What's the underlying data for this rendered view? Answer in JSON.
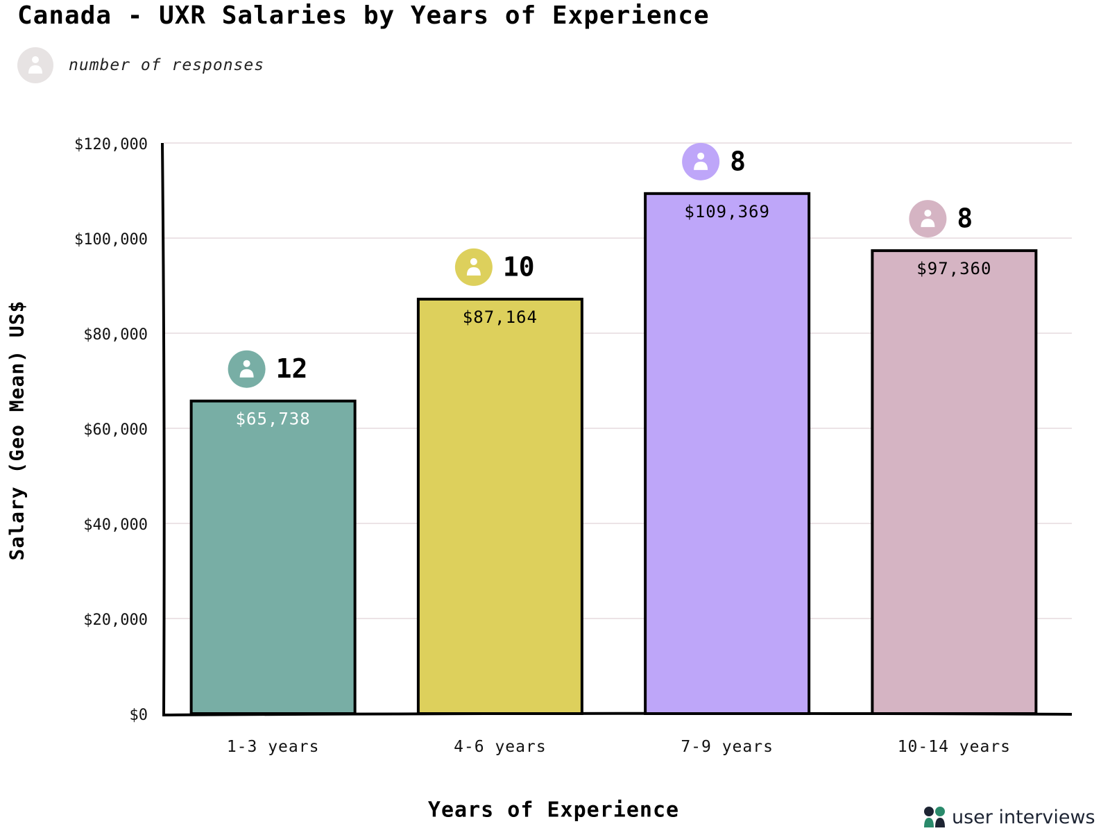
{
  "chart_data": {
    "type": "bar",
    "title": "Canada - UXR Salaries by Years of Experience",
    "legend_label": "number of responses",
    "legend_icon": "person-icon",
    "legend_icon_color": "#e7e3e3",
    "xlabel": "Years of Experience",
    "ylabel": "Salary (Geo Mean) US$",
    "ylim": [
      0,
      120000
    ],
    "y_ticks": [
      {
        "value": 0,
        "label": "$0"
      },
      {
        "value": 20000,
        "label": "$20,000"
      },
      {
        "value": 40000,
        "label": "$40,000"
      },
      {
        "value": 60000,
        "label": "$60,000"
      },
      {
        "value": 80000,
        "label": "$80,000"
      },
      {
        "value": 100000,
        "label": "$100,000"
      },
      {
        "value": 120000,
        "label": "$120,000"
      }
    ],
    "grid": "horizontal",
    "bars": [
      {
        "category": "1-3 years",
        "value": 65738,
        "label": "$65,738",
        "responses": "12",
        "color": "#78aea5",
        "label_color": "#ffffff",
        "icon": "person-icon"
      },
      {
        "category": "4-6 years",
        "value": 87164,
        "label": "$87,164",
        "responses": "10",
        "color": "#ddd05c",
        "label_color": "#000000",
        "icon": "person-icon"
      },
      {
        "category": "7-9 years",
        "value": 109369,
        "label": "$109,369",
        "responses": "8",
        "color": "#bea6f9",
        "label_color": "#000000",
        "icon": "person-icon"
      },
      {
        "category": "10-14 years",
        "value": 97360,
        "label": "$97,360",
        "responses": "8",
        "color": "#d5b4c3",
        "label_color": "#000000",
        "icon": "person-icon"
      }
    ]
  },
  "brand": {
    "name": "user interviews",
    "logo_icon": "user-interviews-logo-icon",
    "colors": {
      "dark": "#1d2433",
      "green": "#2a8a6b"
    }
  }
}
